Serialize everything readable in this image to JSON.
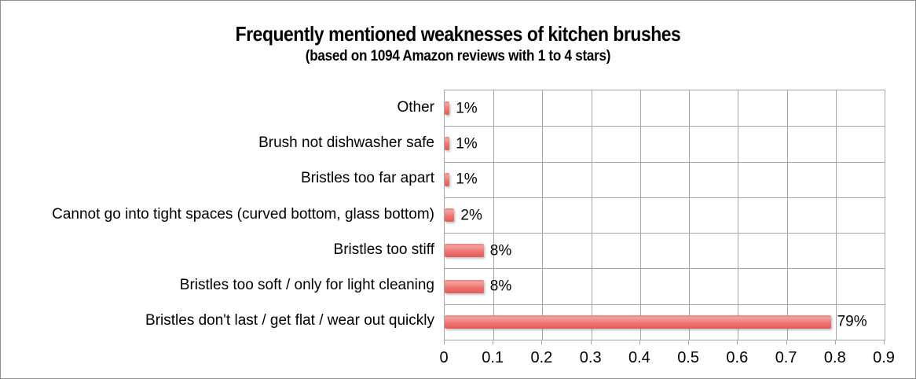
{
  "window": {
    "background": "#ffffff",
    "border_color": "#8c8c8c"
  },
  "chart_data": {
    "type": "bar",
    "orientation": "horizontal",
    "title": "Frequently mentioned weaknesses of kitchen brushes",
    "subtitle": "(based on 1094 Amazon reviews with 1 to 4 stars)",
    "categories": [
      "Other",
      "Brush not dishwasher safe",
      "Bristles too far apart",
      "Cannot go into tight spaces (curved bottom, glass bottom)",
      "Bristles too stiff",
      "Bristles too soft / only for light cleaning",
      "Bristles don't last / get flat / wear out quickly"
    ],
    "values": [
      0.01,
      0.01,
      0.01,
      0.02,
      0.08,
      0.08,
      0.79
    ],
    "data_labels": [
      "1%",
      "1%",
      "1%",
      "2%",
      "8%",
      "8%",
      "79%"
    ],
    "x_ticks": [
      "0",
      "0.1",
      "0.2",
      "0.3",
      "0.4",
      "0.5",
      "0.6",
      "0.7",
      "0.8",
      "0.9"
    ],
    "xlim": [
      0,
      0.9
    ],
    "grid": true,
    "legend": "none",
    "bar_color": "#ee7471",
    "gridline_color": "#a6a6a6",
    "text_color": "#000000"
  }
}
